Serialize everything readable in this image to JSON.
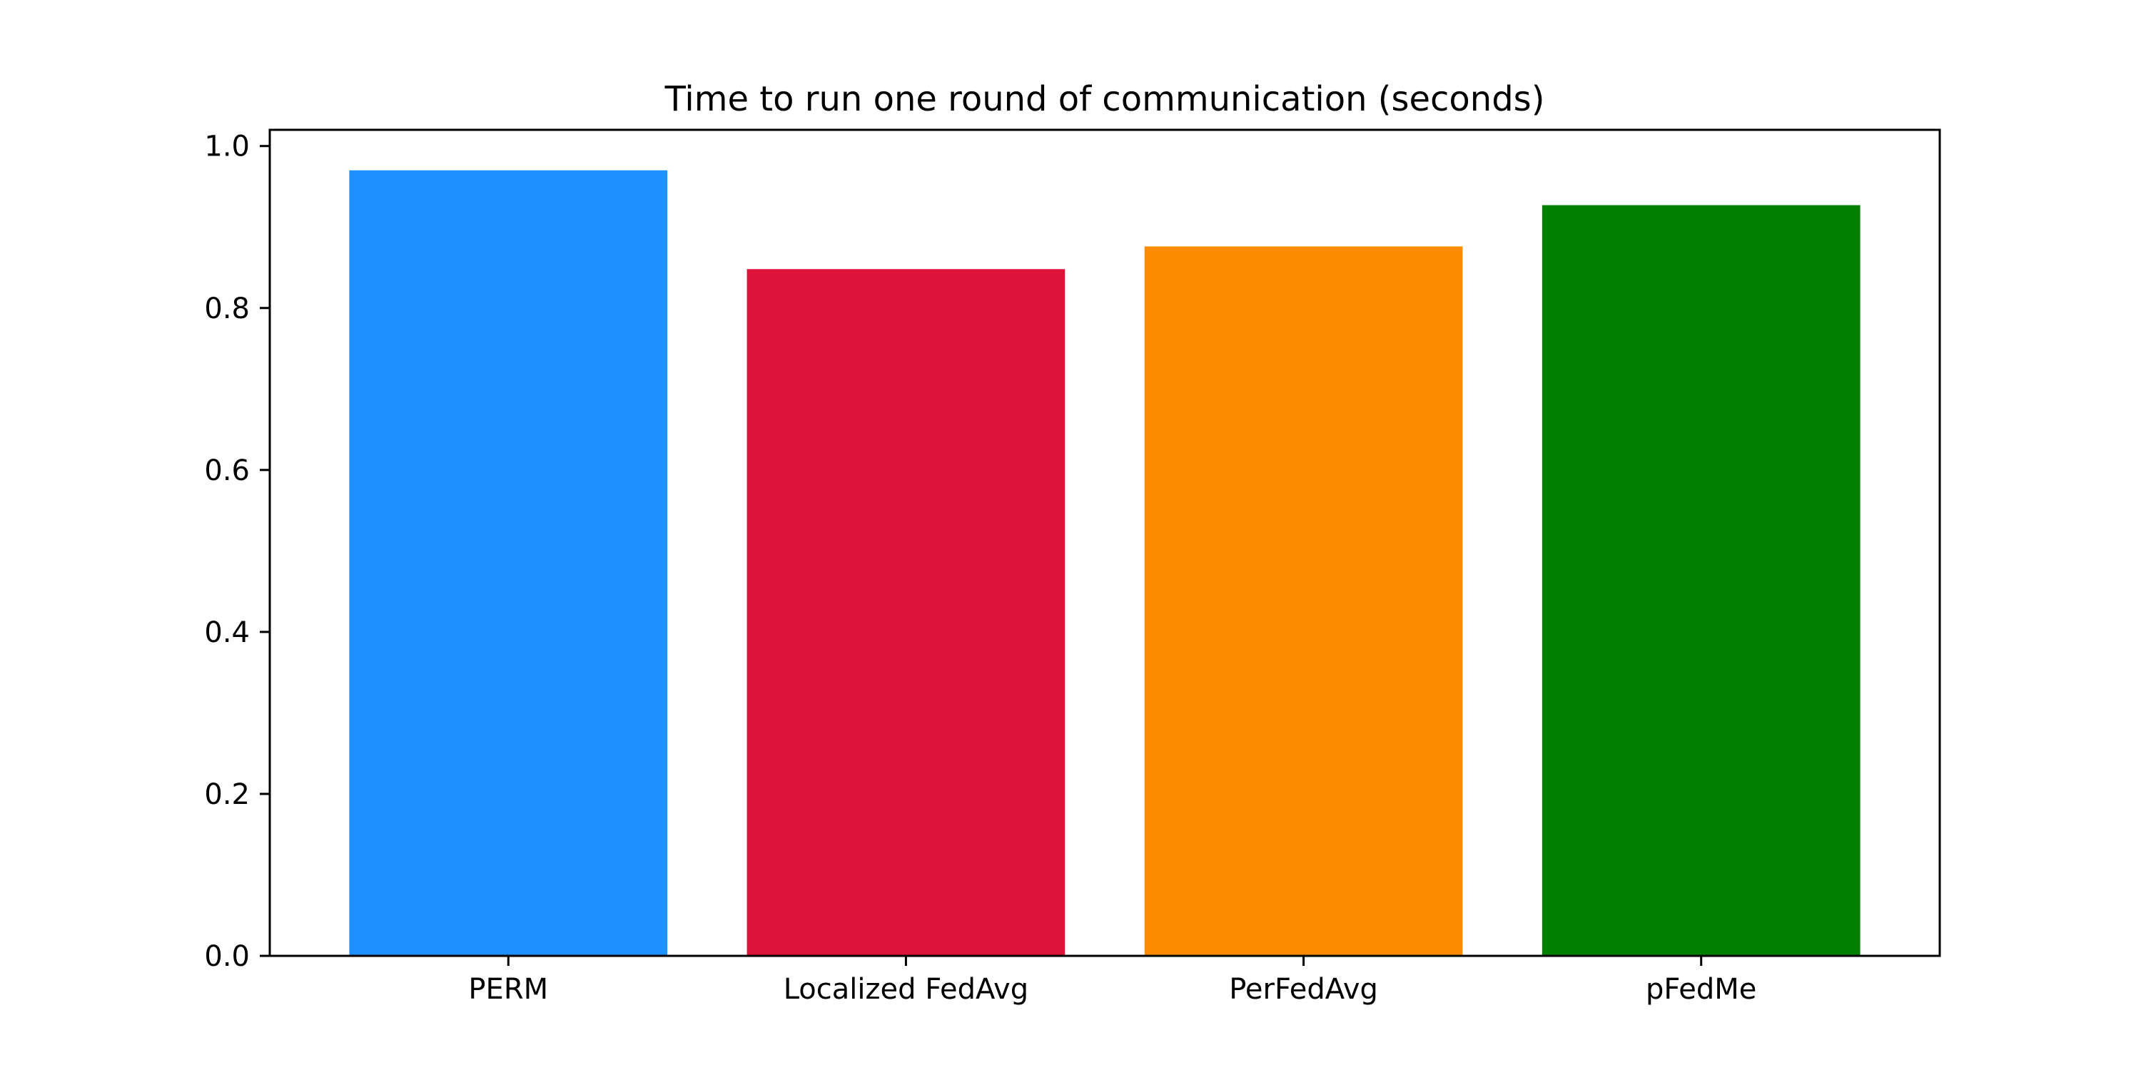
{
  "chart_data": {
    "type": "bar",
    "title": "Time to run one round of communication (seconds)",
    "xlabel": "",
    "ylabel": "",
    "categories": [
      "PERM",
      "Localized FedAvg",
      "PerFedAvg",
      "pFedMe"
    ],
    "values": [
      0.97,
      0.848,
      0.876,
      0.927
    ],
    "colors": [
      "#1e90ff",
      "#dc143c",
      "#ff8c00",
      "#008000"
    ],
    "ylim": [
      0,
      1.02
    ],
    "yticks": [
      "0.0",
      "0.2",
      "0.4",
      "0.6",
      "0.8",
      "1.0"
    ],
    "grid": false,
    "legend": "none"
  }
}
